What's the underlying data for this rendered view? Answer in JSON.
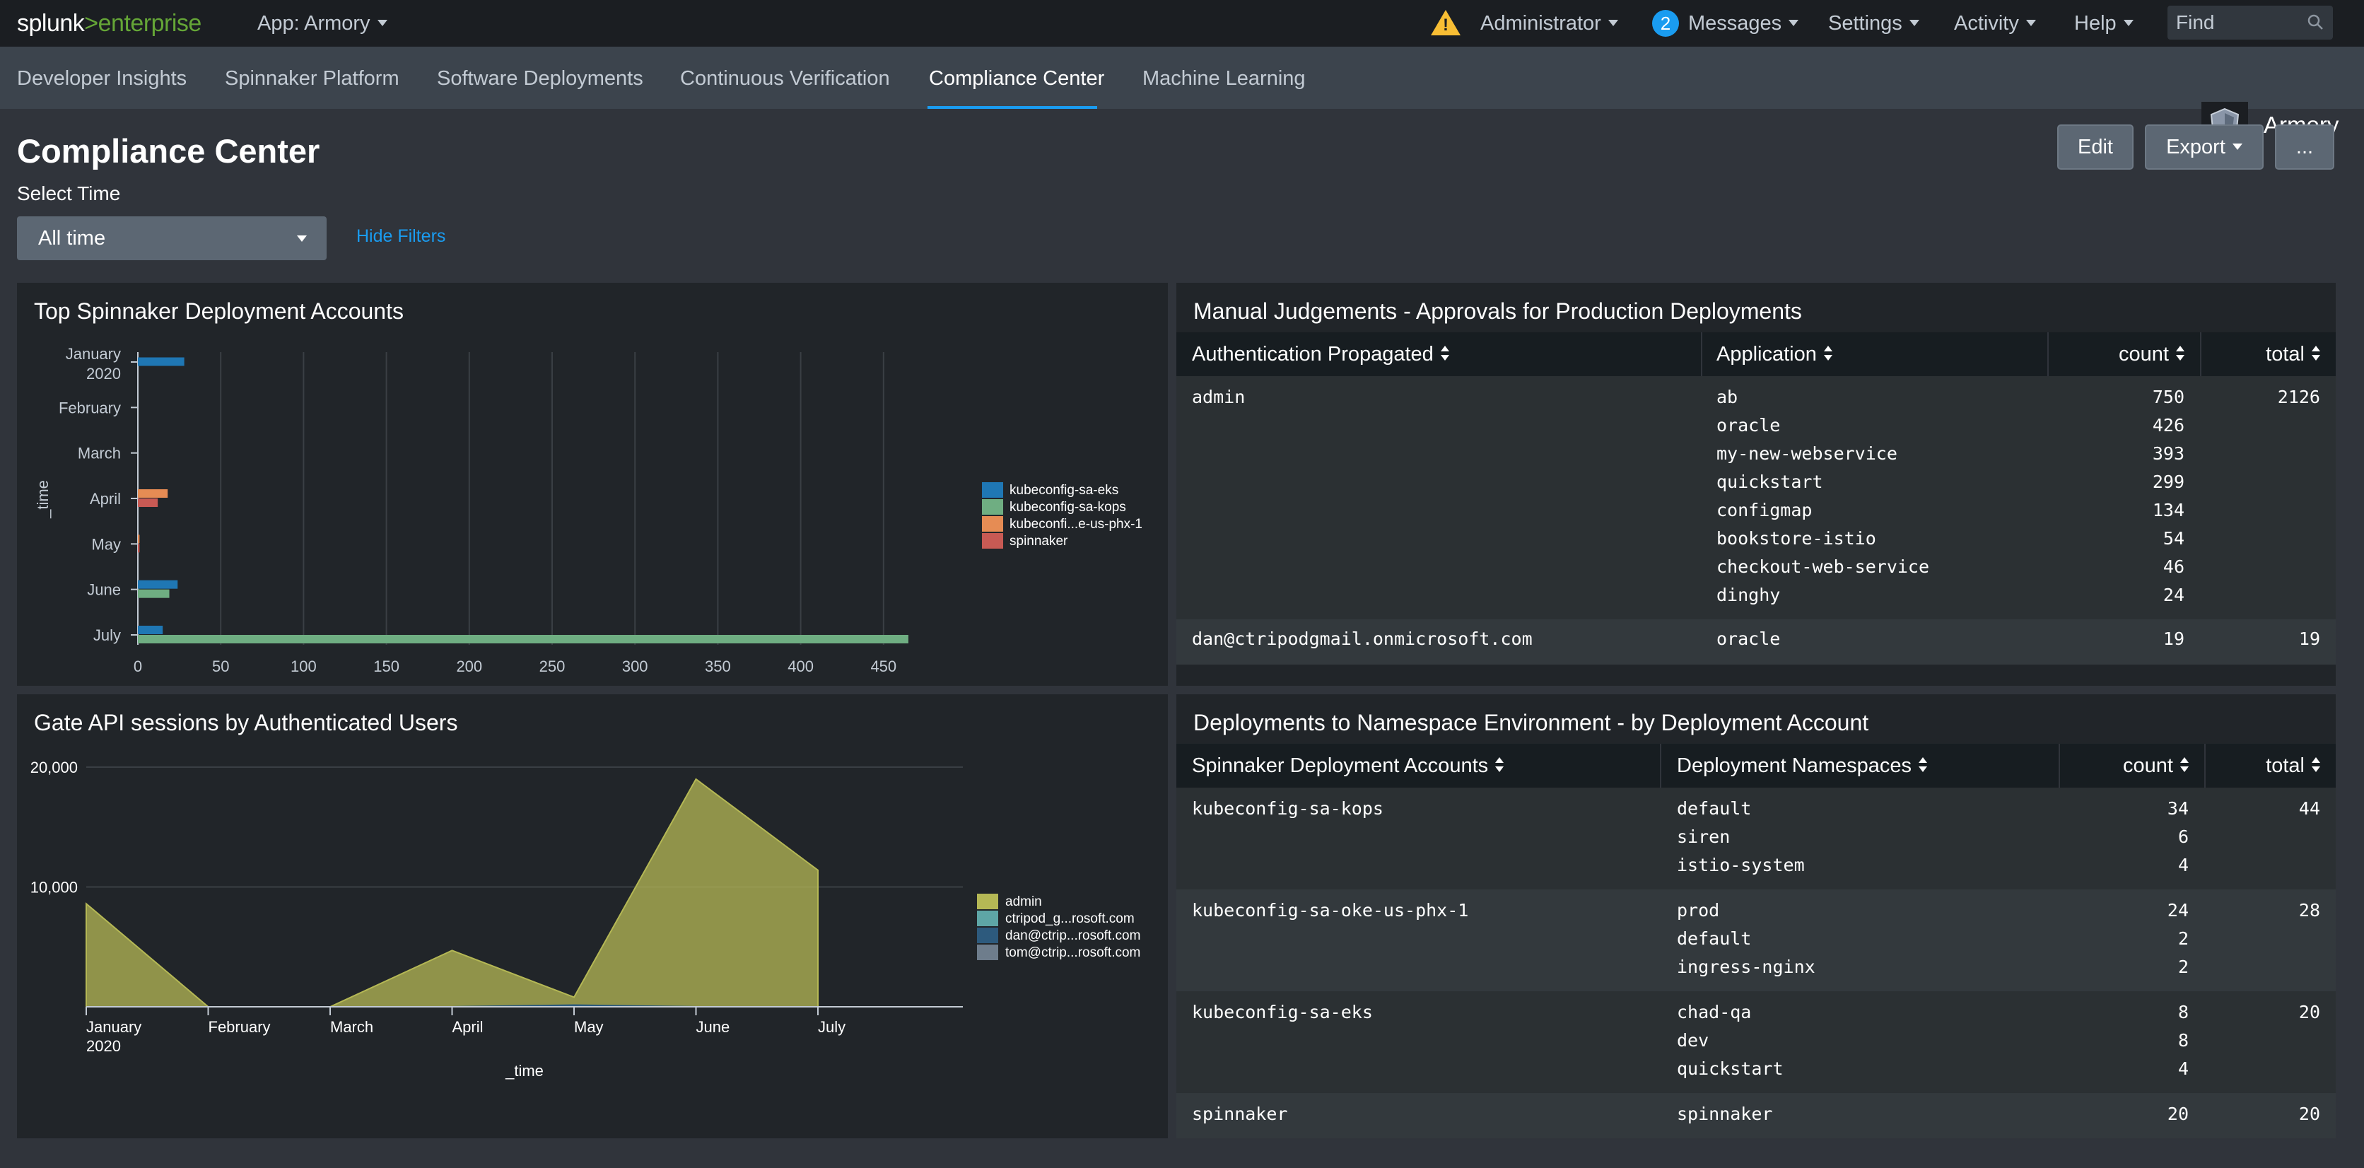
{
  "topbar": {
    "logo_splunk": "splunk",
    "logo_gt": ">",
    "logo_enterprise": "enterprise",
    "app_menu": "App: Armory",
    "warning_icon": "warning-icon",
    "admin_menu": "Administrator",
    "messages_count": "2",
    "messages_menu": "Messages",
    "settings_menu": "Settings",
    "activity_menu": "Activity",
    "help_menu": "Help",
    "find_placeholder": "Find"
  },
  "nav": {
    "tabs": [
      "Developer Insights",
      "Spinnaker Platform",
      "Software Deployments",
      "Continuous Verification",
      "Compliance Center",
      "Machine Learning"
    ],
    "active": "Compliance Center",
    "app_name": "Armory",
    "accent": "#1a9cf0"
  },
  "header": {
    "title": "Compliance Center",
    "edit": "Edit",
    "export": "Export",
    "more": "...",
    "select_time_label": "Select Time",
    "time_value": "All time",
    "hide_filters": "Hide Filters"
  },
  "panels": {
    "deploy_accounts_title": "Top Spinnaker Deployment Accounts",
    "gate_title": "Gate API sessions by Authenticated Users",
    "manual_title": "Manual Judgements - Approvals for Production Deployments",
    "namespace_title": "Deployments to Namespace Environment - by Deployment Account"
  },
  "chart_data": [
    {
      "type": "bar",
      "orientation": "horizontal",
      "title": "Top Spinnaker Deployment Accounts",
      "ylabel": "_time",
      "categories": [
        "January 2020",
        "February",
        "March",
        "April",
        "May",
        "June",
        "July"
      ],
      "xlim": [
        0,
        500
      ],
      "xticks": [
        0,
        50,
        100,
        150,
        200,
        250,
        300,
        350,
        400,
        450
      ],
      "grid": true,
      "legend_position": "right",
      "series": [
        {
          "name": "kubeconfig-sa-eks",
          "color": "#1f77b4",
          "values": [
            28,
            0,
            0,
            0,
            0,
            24,
            15
          ]
        },
        {
          "name": "kubeconfig-sa-kops",
          "color": "#6fae82",
          "values": [
            0,
            0,
            0,
            0,
            0,
            19,
            465
          ]
        },
        {
          "name": "kubeconfi...e-us-phx-1",
          "color": "#e68c54",
          "values": [
            0,
            0,
            0,
            18,
            1,
            0,
            0
          ]
        },
        {
          "name": "spinnaker",
          "color": "#c85a54",
          "values": [
            0,
            0,
            0,
            12,
            1,
            0,
            0
          ]
        }
      ]
    },
    {
      "type": "area",
      "title": "Gate API sessions by Authenticated Users",
      "xlabel": "_time",
      "categories": [
        "January 2020",
        "February",
        "March",
        "April",
        "May",
        "June",
        "July"
      ],
      "ylim": [
        0,
        20000
      ],
      "yticks": [
        10000,
        20000
      ],
      "ytick_labels": [
        "10,000",
        "20,000"
      ],
      "grid": true,
      "legend_position": "right",
      "series": [
        {
          "name": "admin",
          "color": "#b5b855",
          "values": [
            8600,
            0,
            0,
            4700,
            800,
            19000,
            11400
          ]
        },
        {
          "name": "ctripod_g...rosoft.com",
          "color": "#5ea6a6",
          "values": [
            0,
            0,
            0,
            0,
            100,
            0,
            0
          ]
        },
        {
          "name": "dan@ctrip...rosoft.com",
          "color": "#2d5a7d",
          "values": [
            0,
            0,
            0,
            0,
            150,
            0,
            0
          ]
        },
        {
          "name": "tom@ctrip...rosoft.com",
          "color": "#6e7d8c",
          "values": [
            0,
            0,
            0,
            0,
            0,
            0,
            0
          ]
        }
      ]
    }
  ],
  "manual_table": {
    "headers": [
      "Authentication Propagated",
      "Application",
      "count",
      "total"
    ],
    "rows": [
      {
        "auth": "admin",
        "apps": [
          "ab",
          "oracle",
          "my-new-webservice",
          "quickstart",
          "configmap",
          "bookstore-istio",
          "checkout-web-service",
          "dinghy"
        ],
        "counts": [
          "750",
          "426",
          "393",
          "299",
          "134",
          "54",
          "46",
          "24"
        ],
        "total": "2126"
      },
      {
        "auth": "dan@ctripodgmail.onmicrosoft.com",
        "apps": [
          "oracle"
        ],
        "counts": [
          "19"
        ],
        "total": "19"
      }
    ]
  },
  "namespace_table": {
    "headers": [
      "Spinnaker Deployment Accounts",
      "Deployment Namespaces",
      "count",
      "total"
    ],
    "rows": [
      {
        "account": "kubeconfig-sa-kops",
        "namespaces": [
          "default",
          "siren",
          "istio-system"
        ],
        "counts": [
          "34",
          "6",
          "4"
        ],
        "total": "44"
      },
      {
        "account": "kubeconfig-sa-oke-us-phx-1",
        "namespaces": [
          "prod",
          "default",
          "ingress-nginx"
        ],
        "counts": [
          "24",
          "2",
          "2"
        ],
        "total": "28"
      },
      {
        "account": "kubeconfig-sa-eks",
        "namespaces": [
          "chad-qa",
          "dev",
          "quickstart"
        ],
        "counts": [
          "8",
          "8",
          "4"
        ],
        "total": "20"
      },
      {
        "account": "spinnaker",
        "namespaces": [
          "spinnaker"
        ],
        "counts": [
          "20"
        ],
        "total": "20"
      }
    ]
  }
}
